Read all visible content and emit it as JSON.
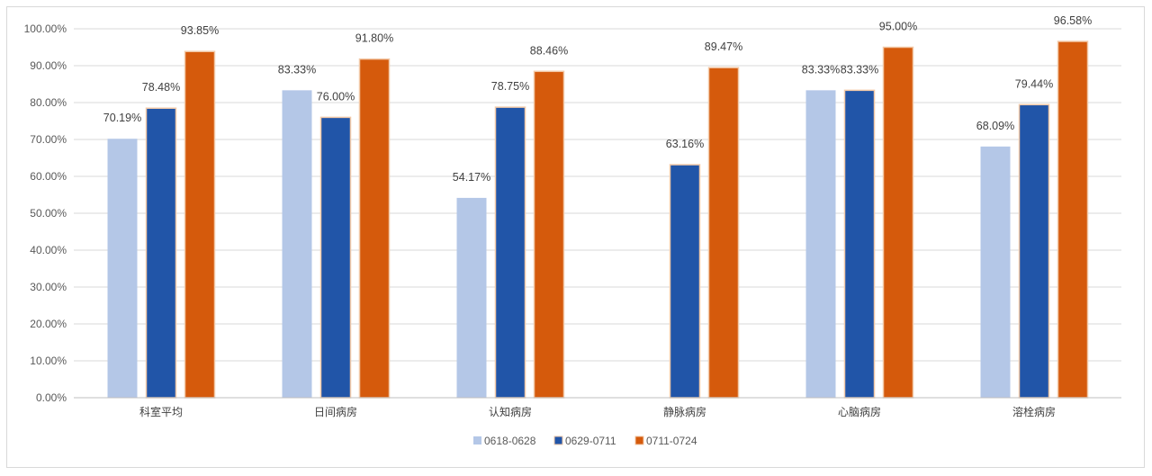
{
  "chart_data": {
    "type": "bar",
    "title": "",
    "xlabel": "",
    "ylabel": "",
    "ylim": [
      0,
      100
    ],
    "y_tick_labels": [
      "0.00%",
      "10.00%",
      "20.00%",
      "30.00%",
      "40.00%",
      "50.00%",
      "60.00%",
      "70.00%",
      "80.00%",
      "90.00%",
      "100.00%"
    ],
    "categories": [
      "科室平均",
      "日间病房",
      "认知病房",
      "静脉病房",
      "心脑病房",
      "溶栓病房"
    ],
    "series": [
      {
        "name": "0618-0628",
        "color": "#b4c7e7",
        "values": [
          70.19,
          83.33,
          54.17,
          null,
          83.33,
          68.09
        ],
        "labels": [
          "70.19%",
          "83.33%",
          "54.17%",
          null,
          "83.33%",
          "68.09%"
        ]
      },
      {
        "name": "0629-0711",
        "color": "#2155a8",
        "values": [
          78.48,
          76.0,
          78.75,
          63.16,
          83.33,
          79.44
        ],
        "labels": [
          "78.48%",
          "76.00%",
          "78.75%",
          "63.16%",
          "83.33%",
          "79.44%"
        ]
      },
      {
        "name": "0711-0724",
        "color": "#d55a0c",
        "values": [
          93.85,
          91.8,
          88.46,
          89.47,
          95.0,
          96.58
        ],
        "labels": [
          "93.85%",
          "91.80%",
          "88.46%",
          "89.47%",
          "95.00%",
          "96.58%"
        ]
      }
    ],
    "grid": true,
    "legend_position": "bottom"
  }
}
